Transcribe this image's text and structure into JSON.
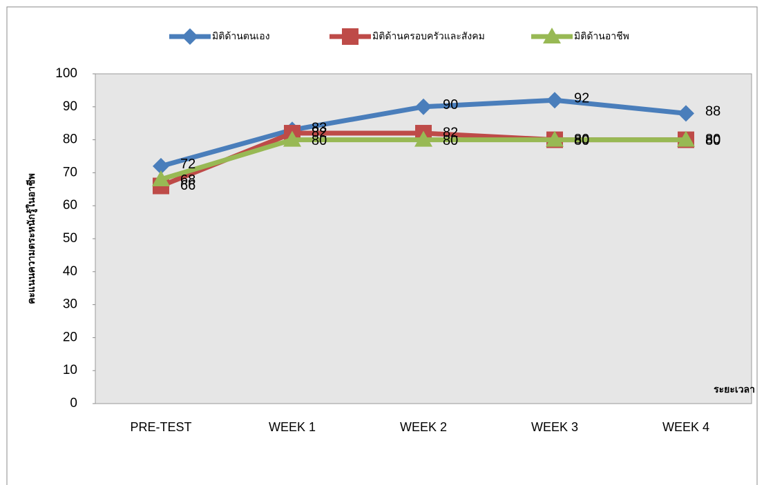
{
  "chart_data": {
    "type": "line",
    "x_label": "ระยะเวลา",
    "y_label": "คะแนนความตระหนักรู้ในอาชีพ",
    "categories": [
      "PRE-TEST",
      "WEEK 1",
      "WEEK 2",
      "WEEK 3",
      "WEEK 4"
    ],
    "series": [
      {
        "name": "มิติด้านตนเอง",
        "color": "#4a7ebb",
        "marker": "diamond",
        "values": [
          72,
          83,
          90,
          92,
          88
        ]
      },
      {
        "name": "มิติด้านครอบครัวและสังคม",
        "color": "#be4b48",
        "marker": "square",
        "values": [
          66,
          82,
          82,
          80,
          80
        ]
      },
      {
        "name": "มิติด้านอาชีพ",
        "color": "#98b954",
        "marker": "triangle",
        "values": [
          68,
          80,
          80,
          80,
          80
        ]
      }
    ],
    "ylim": [
      0,
      100
    ],
    "yticks": [
      0,
      10,
      20,
      30,
      40,
      50,
      60,
      70,
      80,
      90,
      100
    ],
    "legend": "top",
    "data_labels": true
  }
}
